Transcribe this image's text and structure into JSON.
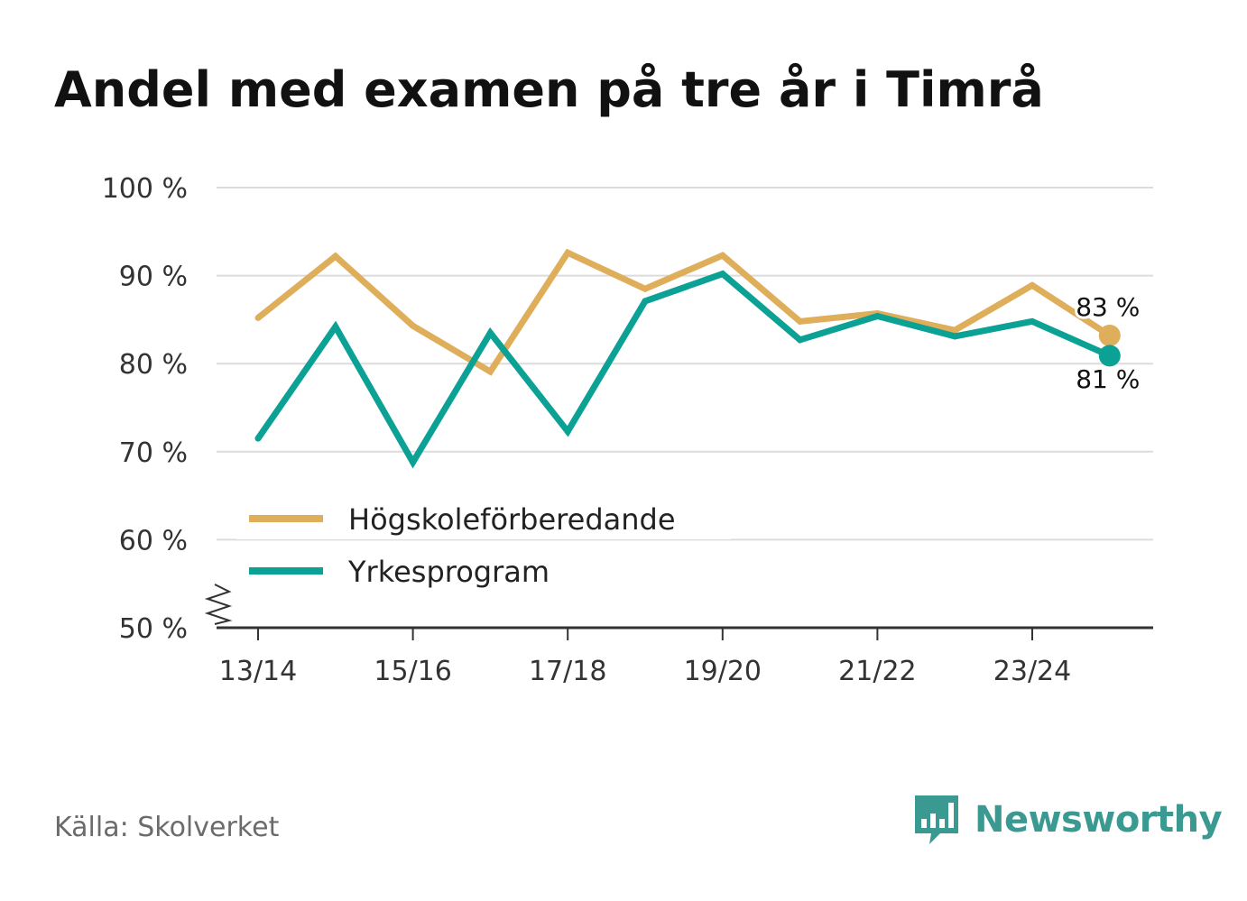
{
  "title": "Andel med examen på tre år i Timrå",
  "source": "Källa: Skolverket",
  "brand": "Newsworthy",
  "colors": {
    "hogskole": "#dfae5a",
    "yrke": "#0ca195",
    "grid": "#dcdcdc",
    "axis": "#333333",
    "brand": "#3a9a91"
  },
  "chart_data": {
    "type": "line",
    "title": "Andel med examen på tre år i Timrå",
    "xlabel": "",
    "ylabel": "",
    "categories": [
      "13/14",
      "14/15",
      "15/16",
      "16/17",
      "17/18",
      "18/19",
      "19/20",
      "20/21",
      "21/22",
      "22/23",
      "23/24",
      "24/25"
    ],
    "tick_labels": [
      "13/14",
      "15/16",
      "17/18",
      "19/20",
      "21/22",
      "23/24"
    ],
    "y_ticks": [
      50,
      60,
      70,
      80,
      90,
      100
    ],
    "y_tick_labels": [
      "50 %",
      "60 %",
      "70 %",
      "80 %",
      "90 %",
      "100 %"
    ],
    "ylim": [
      50,
      100
    ],
    "y_axis_break": true,
    "grid": true,
    "legend_position": "bottom-left",
    "series": [
      {
        "key": "hogskole",
        "name": "Högskoleförberedande",
        "values": [
          85.2,
          92.2,
          84.3,
          79.1,
          92.6,
          88.5,
          92.3,
          84.8,
          85.7,
          83.8,
          88.9,
          83.2
        ],
        "end_label": "83 %"
      },
      {
        "key": "yrke",
        "name": "Yrkesprogram",
        "values": [
          71.5,
          84.2,
          68.8,
          83.5,
          72.3,
          87.1,
          90.2,
          82.7,
          85.4,
          83.1,
          84.8,
          80.9
        ],
        "end_label": "81 %"
      }
    ]
  }
}
